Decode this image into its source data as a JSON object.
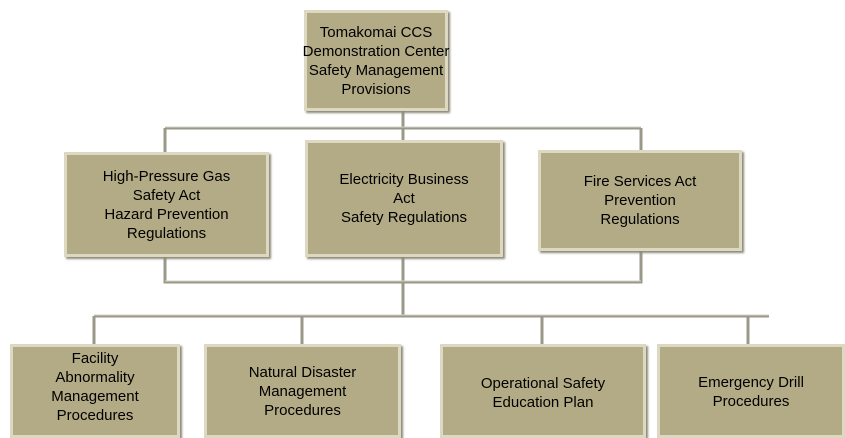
{
  "nodes": [
    {
      "lines": [
        "Tomakomai CCS",
        "Demonstration Center",
        "Safety Management",
        "Provisions"
      ]
    },
    {
      "lines": [
        "High-Pressure Gas",
        "Safety Act",
        "Hazard Prevention",
        "Regulations"
      ]
    },
    {
      "lines": [
        "Electricity Business",
        "Act",
        "Safety Regulations"
      ]
    },
    {
      "lines": [
        "Fire Services Act",
        "Prevention",
        "Regulations"
      ]
    },
    {
      "lines": [
        "Facility",
        "Abnormality",
        "Management",
        "Procedures"
      ]
    },
    {
      "lines": [
        "Natural Disaster",
        "Management",
        "Procedures"
      ]
    },
    {
      "lines": [
        "Operational Safety",
        "Education Plan"
      ]
    },
    {
      "lines": [
        "Emergency Drill",
        "Procedures"
      ]
    }
  ]
}
